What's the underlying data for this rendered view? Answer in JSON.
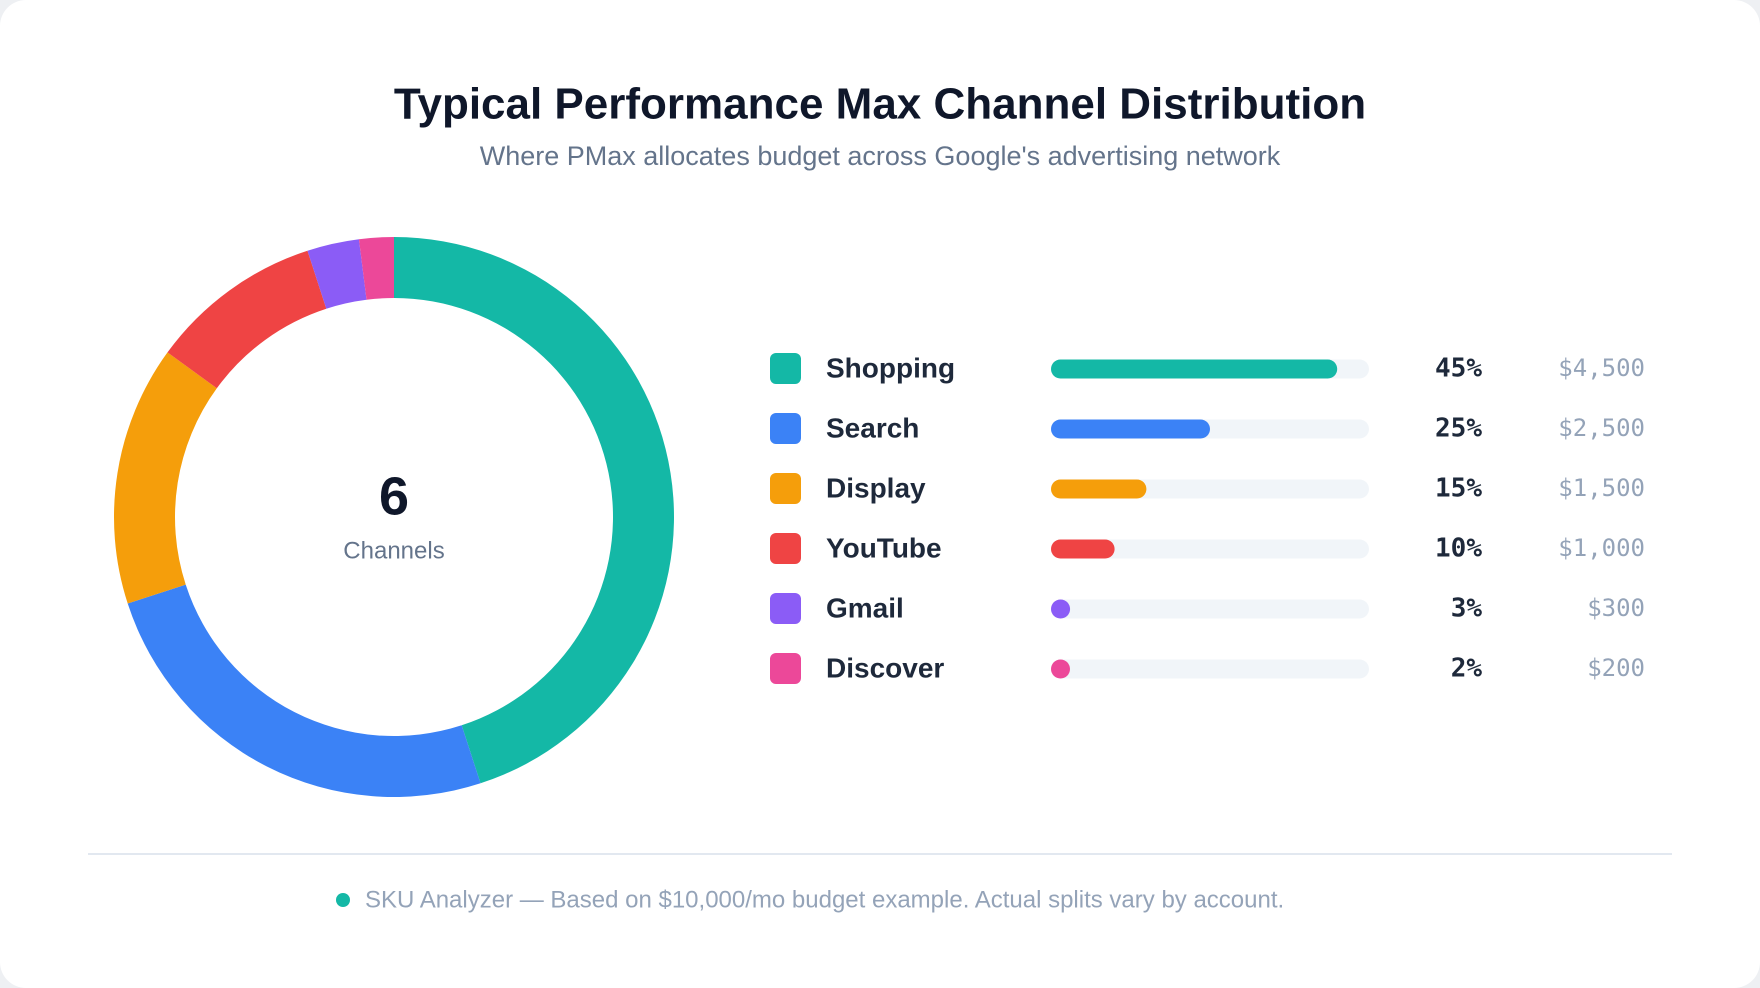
{
  "chart_data": {
    "type": "pie",
    "title": "Typical Performance Max Channel Distribution",
    "subtitle": "Where PMax allocates budget across Google's advertising network",
    "center_value": 6,
    "center_label": "Channels",
    "categories": [
      "Shopping",
      "Search",
      "Display",
      "YouTube",
      "Gmail",
      "Discover"
    ],
    "colors": [
      "#14b8a6",
      "#3b82f6",
      "#f59e0b",
      "#ef4444",
      "#8b5cf6",
      "#ec4899"
    ],
    "values": [
      45,
      25,
      15,
      10,
      3,
      2
    ],
    "value_labels": [
      "45%",
      "25%",
      "15%",
      "10%",
      "3%",
      "2%"
    ],
    "amounts": [
      4500,
      2500,
      1500,
      1000,
      300,
      200
    ],
    "amount_labels": [
      "$4,500",
      "$2,500",
      "$1,500",
      "$1,000",
      "$300",
      "$200"
    ],
    "footer": "SKU Analyzer — Based on $10,000/mo budget example. Actual splits vary by account."
  }
}
